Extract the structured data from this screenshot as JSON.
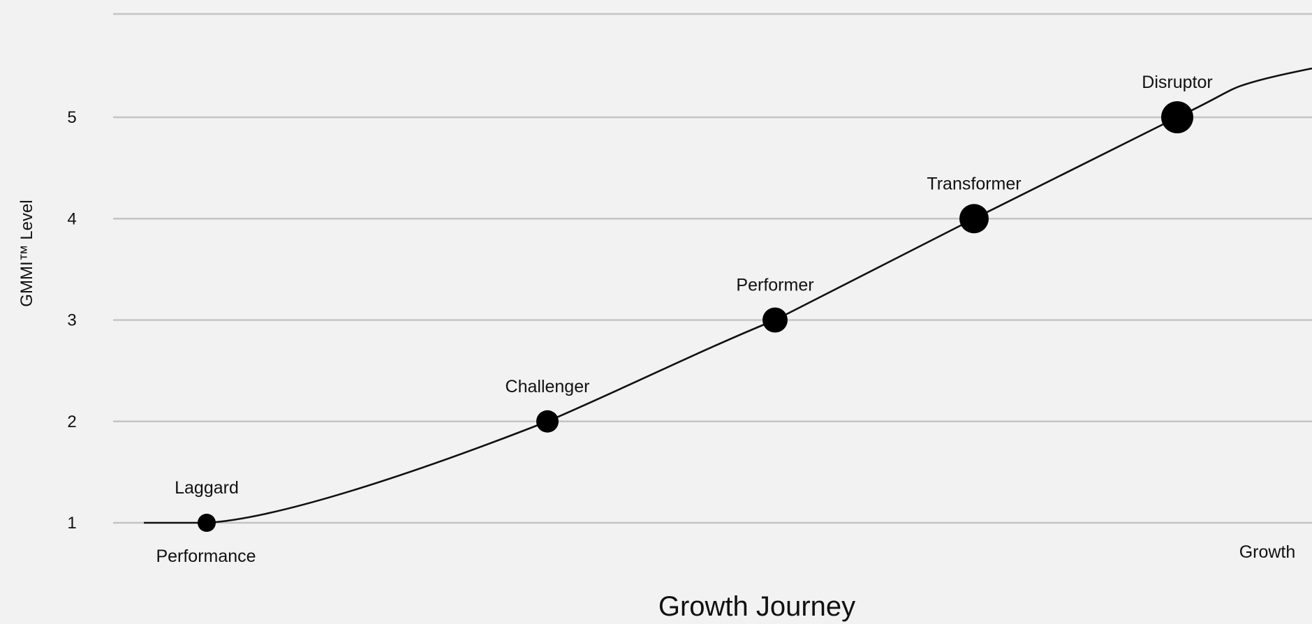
{
  "chart_data": {
    "type": "line",
    "xlabel": "Growth Journey",
    "ylabel": "GMMI™ Level",
    "x_axis_start_label": "Performance",
    "x_axis_end_label": "Growth",
    "ylim": [
      1,
      5
    ],
    "yticks": [
      "1",
      "2",
      "3",
      "4",
      "5"
    ],
    "grid": true,
    "curve_color": "#111111",
    "grid_color": "#c4c4c4",
    "points": [
      {
        "label": "Laggard",
        "y": 1
      },
      {
        "label": "Challenger",
        "y": 2
      },
      {
        "label": "Performer",
        "y": 3
      },
      {
        "label": "Transformer",
        "y": 4
      },
      {
        "label": "Disruptor",
        "y": 5
      }
    ]
  }
}
